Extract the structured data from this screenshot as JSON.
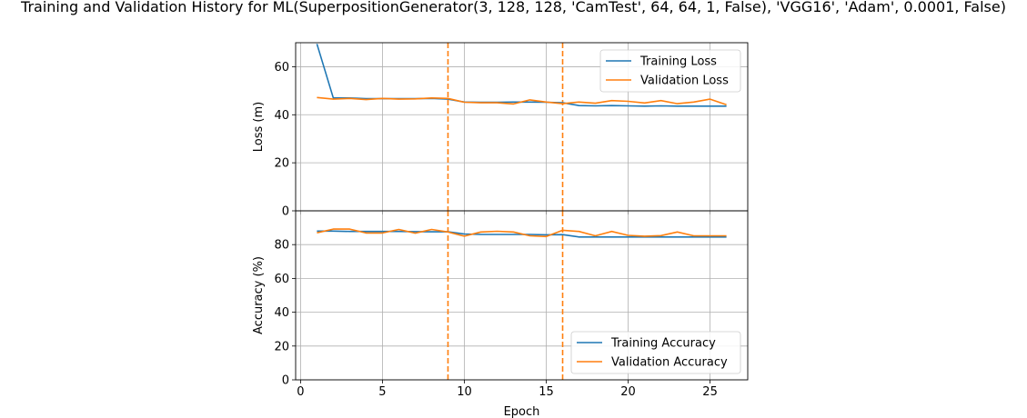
{
  "title": "Training and Validation History for ML(SuperpositionGenerator(3, 128, 128, 'CamTest', 64, 64, 1, False), 'VGG16', 'Adam', 0.0001, False)",
  "colors": {
    "training": "#1f77b4",
    "validation": "#ff7f0e",
    "grid": "#b0b0b0",
    "marker": "#ff7f0e"
  },
  "chart_data": [
    {
      "type": "line",
      "ylabel": "Loss (m)",
      "xlabel": "",
      "xlim": [
        -0.3,
        27.3
      ],
      "ylim": [
        0,
        70
      ],
      "x_ticks": [
        0,
        5,
        10,
        15,
        20,
        25
      ],
      "y_ticks": [
        0,
        20,
        40,
        60
      ],
      "grid": true,
      "legend": "top-right",
      "vlines": [
        9,
        16
      ],
      "x": [
        1,
        2,
        3,
        4,
        5,
        6,
        7,
        8,
        9,
        10,
        11,
        12,
        13,
        14,
        15,
        16,
        17,
        18,
        19,
        20,
        21,
        22,
        23,
        24,
        25,
        26
      ],
      "series": [
        {
          "name": "Training Loss",
          "color": "#1f77b4",
          "values": [
            69.5,
            47.0,
            47.0,
            46.7,
            46.7,
            46.7,
            46.7,
            46.8,
            46.5,
            45.3,
            45.2,
            45.2,
            45.3,
            45.3,
            45.2,
            45.0,
            43.8,
            43.7,
            43.8,
            43.7,
            43.6,
            43.7,
            43.6,
            43.6,
            43.6,
            43.6
          ]
        },
        {
          "name": "Validation Loss",
          "color": "#ff7f0e",
          "values": [
            47.2,
            46.5,
            46.8,
            46.3,
            46.8,
            46.5,
            46.6,
            47.0,
            46.8,
            45.2,
            45.0,
            45.0,
            44.5,
            46.2,
            45.3,
            44.6,
            45.3,
            44.8,
            45.9,
            45.6,
            44.9,
            45.9,
            44.6,
            45.3,
            46.5,
            44.2
          ]
        }
      ]
    },
    {
      "type": "line",
      "ylabel": "Accuracy (%)",
      "xlabel": "Epoch",
      "xlim": [
        -0.3,
        27.3
      ],
      "ylim": [
        0,
        100
      ],
      "x_ticks": [
        0,
        5,
        10,
        15,
        20,
        25
      ],
      "y_ticks": [
        0,
        20,
        40,
        60,
        80
      ],
      "grid": true,
      "legend": "bottom-right",
      "vlines": [
        9,
        16
      ],
      "x": [
        1,
        2,
        3,
        4,
        5,
        6,
        7,
        8,
        9,
        10,
        11,
        12,
        13,
        14,
        15,
        16,
        17,
        18,
        19,
        20,
        21,
        22,
        23,
        24,
        25,
        26
      ],
      "series": [
        {
          "name": "Training Accuracy",
          "color": "#1f77b4",
          "values": [
            88.0,
            88.0,
            87.8,
            87.8,
            87.8,
            87.8,
            87.7,
            87.6,
            87.6,
            86.3,
            86.0,
            86.0,
            86.0,
            86.0,
            85.8,
            85.9,
            84.5,
            84.5,
            84.5,
            84.5,
            84.5,
            84.5,
            84.5,
            84.5,
            84.5,
            84.5
          ]
        },
        {
          "name": "Validation Accuracy",
          "color": "#ff7f0e",
          "values": [
            87.0,
            89.2,
            89.2,
            86.9,
            86.9,
            89.0,
            86.8,
            89.0,
            87.5,
            85.0,
            87.5,
            87.9,
            87.5,
            85.2,
            84.8,
            88.5,
            87.8,
            85.2,
            87.8,
            85.5,
            85.0,
            85.3,
            87.5,
            85.2,
            85.2,
            85.2
          ]
        }
      ]
    }
  ]
}
